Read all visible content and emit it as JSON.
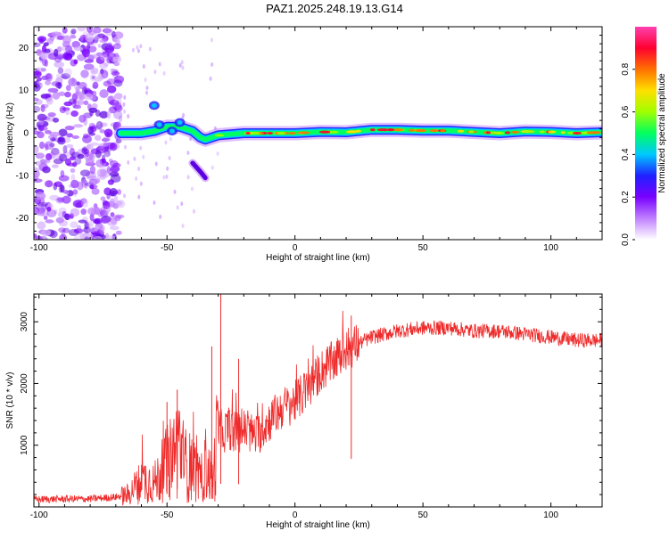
{
  "figure_title": "PAZ1.2025.248.19.13.G14",
  "colors": {
    "snr_line": "#ee2a2a",
    "axis": "#000000",
    "background": "#ffffff"
  },
  "chart_data": [
    {
      "type": "heatmap",
      "title": "PAZ1.2025.248.19.13.G14",
      "xlabel": "Height of straight line (km)",
      "ylabel": "Frequency (Hz)",
      "xlim": [
        -102,
        120
      ],
      "ylim": [
        -25,
        25
      ],
      "xticks": [
        -100,
        -50,
        0,
        50,
        100
      ],
      "yticks": [
        -20,
        -10,
        0,
        10,
        20
      ],
      "colorbar": {
        "label": "Normalized spectral amplitude",
        "range": [
          0,
          1
        ],
        "ticks": [
          0.0,
          0.2,
          0.4,
          0.6,
          0.8
        ],
        "tick_labels": [
          "0.0",
          "0.2",
          "0.4",
          "0.6",
          "0.8"
        ],
        "colormap": [
          "#ffffff",
          "#c080ff",
          "#7a00ff",
          "#2020ff",
          "#00c8ff",
          "#00ff60",
          "#a0ff00",
          "#ffe000",
          "#ff7000",
          "#ff0030",
          "#ff40b0"
        ]
      },
      "ridge": {
        "description_points_x": [
          -68,
          -60,
          -55,
          -50,
          -45,
          -40,
          -37,
          -35,
          -30,
          -20,
          -10,
          0,
          10,
          20,
          30,
          40,
          50,
          60,
          70,
          80,
          90,
          100,
          110,
          120
        ],
        "frequency_hz": [
          0,
          0,
          0.5,
          1.5,
          1.5,
          0.5,
          -1,
          -1.5,
          -0.5,
          0,
          0,
          0,
          0.3,
          0.2,
          0.8,
          0.8,
          0.6,
          0.6,
          0.3,
          0,
          0.4,
          0.3,
          0,
          0.2
        ]
      },
      "noise_region_x": [
        -102,
        -68
      ],
      "low_freq_branch": {
        "x": [
          -40,
          -37,
          -35
        ],
        "frequency_hz": [
          -7,
          -9,
          -10.5
        ]
      }
    },
    {
      "type": "line",
      "xlabel": "Height of straight line (km)",
      "ylabel": "SNR (10 * v/v)",
      "xlim": [
        -102,
        120
      ],
      "ylim": [
        0,
        3450
      ],
      "xticks": [
        -100,
        -50,
        0,
        50,
        100
      ],
      "yticks": [
        1000,
        2000,
        3000
      ],
      "series": [
        {
          "name": "SNR",
          "x": [
            -102,
            -90,
            -80,
            -70,
            -65,
            -62,
            -58,
            -55,
            -50,
            -47,
            -45,
            -42,
            -40,
            -37,
            -35,
            -32,
            -30,
            -28,
            -26,
            -24,
            -20,
            -15,
            -10,
            -5,
            0,
            5,
            10,
            15,
            20,
            25,
            30,
            35,
            40,
            50,
            60,
            70,
            80,
            90,
            100,
            110,
            120
          ],
          "values": [
            120,
            130,
            130,
            160,
            200,
            350,
            450,
            380,
            700,
            900,
            1000,
            600,
            700,
            400,
            700,
            400,
            1300,
            1200,
            1300,
            1200,
            1250,
            1150,
            1400,
            1600,
            1700,
            1900,
            2200,
            2350,
            2550,
            2650,
            2750,
            2800,
            2850,
            2900,
            2900,
            2850,
            2850,
            2800,
            2750,
            2700,
            2700
          ],
          "spikes": [
            {
              "x": -29,
              "value": 3450
            },
            {
              "x": -32.5,
              "value": 2600
            },
            {
              "x": -46,
              "value": 1900
            },
            {
              "x": -50,
              "value": 1700
            },
            {
              "x": -22,
              "value": 2400
            },
            {
              "x": 22,
              "value": 3100
            }
          ]
        }
      ]
    }
  ]
}
